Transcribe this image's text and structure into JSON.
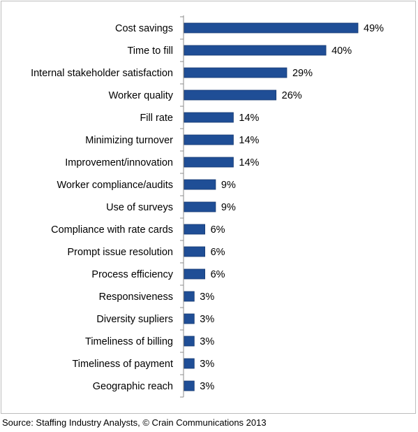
{
  "chart_data": {
    "type": "bar",
    "orientation": "horizontal",
    "categories": [
      "Cost savings",
      "Time to fill",
      "Internal stakeholder satisfaction",
      "Worker quality",
      "Fill rate",
      "Minimizing turnover",
      "Improvement/innovation",
      "Worker compliance/audits",
      "Use of surveys",
      "Compliance with rate cards",
      "Prompt issue resolution",
      "Process efficiency",
      "Responsiveness",
      "Diversity supliers",
      "Timeliness of billing",
      "Timeliness of payment",
      "Geographic reach"
    ],
    "values": [
      49,
      40,
      29,
      26,
      14,
      14,
      14,
      9,
      9,
      6,
      6,
      6,
      3,
      3,
      3,
      3,
      3
    ],
    "value_labels": [
      "49%",
      "40%",
      "29%",
      "26%",
      "14%",
      "14%",
      "14%",
      "9%",
      "9%",
      "6%",
      "6%",
      "6%",
      "3%",
      "3%",
      "3%",
      "3%",
      "3%"
    ],
    "xlim": [
      0,
      50
    ],
    "grid": false,
    "legend": "none",
    "bar_color": "#1f4e96"
  },
  "footer": {
    "source": "Source: Staffing Industry Analysts, © Crain Communications 2013"
  }
}
